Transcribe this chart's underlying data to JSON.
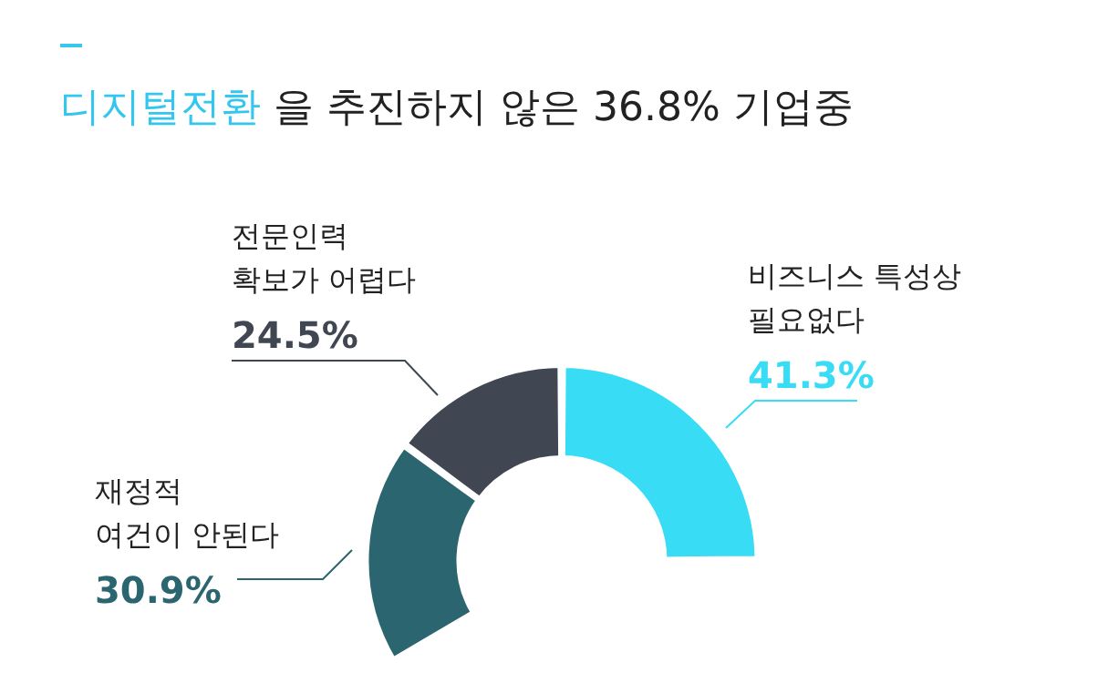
{
  "chart_data": {
    "type": "donut",
    "title": "디지털전환 을 추진하지 않은 36.8% 기업중",
    "categories": [
      "재정적\n여건이 안된다",
      "전문인력\n확보가 어렵다",
      "비즈니스 특성상\n필요없다"
    ],
    "values": [
      30.9,
      24.5,
      41.3
    ],
    "colors": [
      "#2b6570",
      "#404652",
      "#38dcf5"
    ],
    "value_labels": [
      "30.9%",
      "24.5%",
      "41.3%"
    ],
    "legend": false
  }
}
